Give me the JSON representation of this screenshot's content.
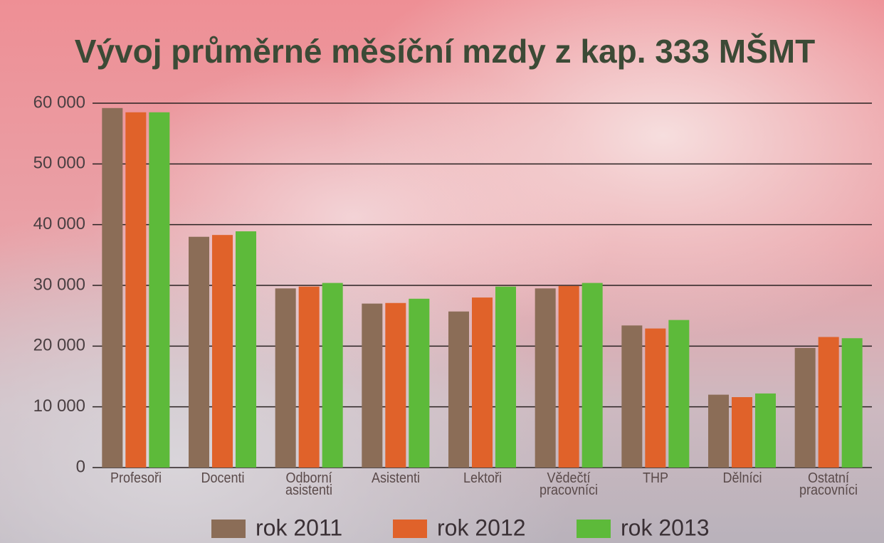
{
  "chart_data": {
    "type": "bar",
    "title": "Vývoj průměrné měsíční mzdy z kap. 333 MŠMT",
    "categories": [
      "Profesoři",
      "Docenti",
      "Odborní asistenti",
      "Asistenti",
      "Lektoři",
      "Vědečtí pracovníci",
      "THP",
      "Dělníci",
      "Ostatní pracovníci"
    ],
    "series": [
      {
        "name": "rok 2011",
        "color": "#8b6d57",
        "values": [
          59200,
          38000,
          29500,
          27000,
          25700,
          29500,
          23400,
          12000,
          19700
        ]
      },
      {
        "name": "rok 2012",
        "color": "#e0622a",
        "values": [
          58500,
          38300,
          29800,
          27100,
          28000,
          29900,
          22900,
          11600,
          21500
        ]
      },
      {
        "name": "rok 2013",
        "color": "#5dba3a",
        "values": [
          58500,
          38900,
          30400,
          27800,
          29800,
          30400,
          24300,
          12200,
          21300
        ]
      }
    ],
    "ylim": [
      0,
      60000
    ],
    "yticks": [
      0,
      {
        "value": 10000,
        "label": "10 000"
      },
      {
        "value": 20000,
        "label": "20 000"
      },
      {
        "value": 30000,
        "label": "30 000"
      },
      {
        "value": 40000,
        "label": "40 000"
      },
      {
        "value": 50000,
        "label": "50 000"
      },
      {
        "value": 60000,
        "label": "60 000"
      }
    ],
    "grid": true
  }
}
